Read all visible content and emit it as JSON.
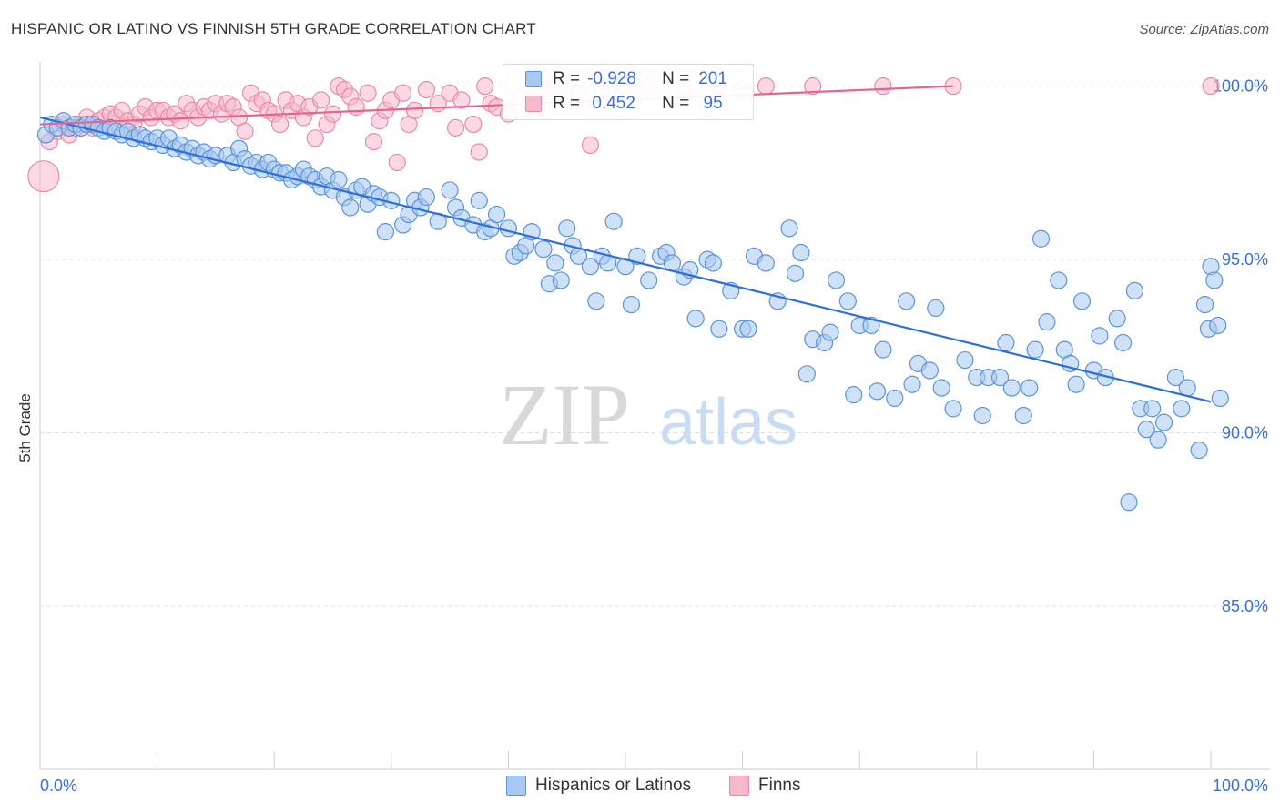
{
  "title": "HISPANIC OR LATINO VS FINNISH 5TH GRADE CORRELATION CHART",
  "source": "Source: ZipAtlas.com",
  "watermark": {
    "zip": "ZIP",
    "atlas": "atlas"
  },
  "legend_stats": [
    {
      "r_label": "R =",
      "r_value": "-0.928",
      "n_label": "N =",
      "n_value": "201"
    },
    {
      "r_label": "R =",
      "r_value": " 0.452",
      "n_label": "N =",
      "n_value": " 95"
    }
  ],
  "bottom_legend": [
    "Hispanics or Latinos",
    "Finns"
  ],
  "colors": {
    "blue_fill": "#a8c8f0",
    "blue_stroke": "#5b93dc",
    "blue_line": "#2f6fd6",
    "pink_fill": "#f7b8ca",
    "pink_stroke": "#e98aa8",
    "pink_line": "#e8638c",
    "tick_text": "#3a6fd8",
    "grid": "#dddddd"
  },
  "chart_data": {
    "type": "scatter",
    "title": "HISPANIC OR LATINO VS FINNISH 5TH GRADE CORRELATION CHART",
    "xlabel": "",
    "ylabel": "5th Grade",
    "xlim": [
      0,
      100
    ],
    "ylim": [
      80.3,
      100.7
    ],
    "x_tick_labels": [
      "0.0%",
      "100.0%"
    ],
    "y_ticks": [
      85,
      90,
      95,
      100
    ],
    "y_tick_labels": [
      "85.0%",
      "90.0%",
      "95.0%",
      "100.0%"
    ],
    "legend_placement": "top-center",
    "grid": true,
    "series": [
      {
        "name": "Hispanics or Latinos",
        "color": "#5b93dc",
        "trend": {
          "x0": 0,
          "y0": 99.1,
          "x1": 100,
          "y1": 90.9
        },
        "points": [
          [
            0.5,
            98.6
          ],
          [
            1,
            98.9
          ],
          [
            1.5,
            98.8
          ],
          [
            2,
            99.0
          ],
          [
            2.5,
            98.8
          ],
          [
            3,
            98.9
          ],
          [
            3.5,
            98.8
          ],
          [
            4,
            98.9
          ],
          [
            4.5,
            98.9
          ],
          [
            5,
            98.8
          ],
          [
            5.5,
            98.7
          ],
          [
            6,
            98.8
          ],
          [
            6.5,
            98.7
          ],
          [
            7,
            98.6
          ],
          [
            7.5,
            98.7
          ],
          [
            8,
            98.5
          ],
          [
            8.5,
            98.6
          ],
          [
            9,
            98.5
          ],
          [
            9.5,
            98.4
          ],
          [
            10,
            98.5
          ],
          [
            10.5,
            98.3
          ],
          [
            11,
            98.5
          ],
          [
            11.5,
            98.2
          ],
          [
            12,
            98.3
          ],
          [
            12.5,
            98.1
          ],
          [
            13,
            98.2
          ],
          [
            13.5,
            98.0
          ],
          [
            14,
            98.1
          ],
          [
            14.5,
            97.9
          ],
          [
            15,
            98.0
          ],
          [
            16,
            98.0
          ],
          [
            16.5,
            97.8
          ],
          [
            17,
            98.2
          ],
          [
            17.5,
            97.9
          ],
          [
            18,
            97.7
          ],
          [
            18.5,
            97.8
          ],
          [
            19,
            97.6
          ],
          [
            19.5,
            97.8
          ],
          [
            20,
            97.6
          ],
          [
            20.5,
            97.5
          ],
          [
            21,
            97.5
          ],
          [
            21.5,
            97.3
          ],
          [
            22,
            97.4
          ],
          [
            22.5,
            97.6
          ],
          [
            23,
            97.4
          ],
          [
            23.5,
            97.3
          ],
          [
            24,
            97.1
          ],
          [
            24.5,
            97.4
          ],
          [
            25,
            97.0
          ],
          [
            25.5,
            97.3
          ],
          [
            26,
            96.8
          ],
          [
            26.5,
            96.5
          ],
          [
            27,
            97.0
          ],
          [
            27.5,
            97.1
          ],
          [
            28,
            96.6
          ],
          [
            28.5,
            96.9
          ],
          [
            29,
            96.8
          ],
          [
            29.5,
            95.8
          ],
          [
            30,
            96.7
          ],
          [
            31,
            96.0
          ],
          [
            31.5,
            96.3
          ],
          [
            32,
            96.7
          ],
          [
            32.5,
            96.5
          ],
          [
            33,
            96.8
          ],
          [
            34,
            96.1
          ],
          [
            35,
            97.0
          ],
          [
            35.5,
            96.5
          ],
          [
            36,
            96.2
          ],
          [
            37,
            96.0
          ],
          [
            37.5,
            96.7
          ],
          [
            38,
            95.8
          ],
          [
            38.5,
            95.9
          ],
          [
            39,
            96.3
          ],
          [
            40,
            95.9
          ],
          [
            40.5,
            95.1
          ],
          [
            41,
            95.2
          ],
          [
            41.5,
            95.4
          ],
          [
            42,
            95.8
          ],
          [
            43,
            95.3
          ],
          [
            43.5,
            94.3
          ],
          [
            44,
            94.9
          ],
          [
            44.5,
            94.4
          ],
          [
            45,
            95.9
          ],
          [
            45.5,
            95.4
          ],
          [
            46,
            95.1
          ],
          [
            47,
            94.8
          ],
          [
            47.5,
            93.8
          ],
          [
            48,
            95.1
          ],
          [
            48.5,
            94.9
          ],
          [
            49,
            96.1
          ],
          [
            50,
            94.8
          ],
          [
            50.5,
            93.7
          ],
          [
            51,
            95.1
          ],
          [
            52,
            94.4
          ],
          [
            53,
            95.1
          ],
          [
            53.5,
            95.2
          ],
          [
            54,
            94.9
          ],
          [
            55,
            94.5
          ],
          [
            55.5,
            94.7
          ],
          [
            56,
            93.3
          ],
          [
            57,
            95.0
          ],
          [
            57.5,
            94.9
          ],
          [
            58,
            93.0
          ],
          [
            59,
            94.1
          ],
          [
            60,
            93.0
          ],
          [
            60.5,
            93.0
          ],
          [
            61,
            95.1
          ],
          [
            62,
            94.9
          ],
          [
            63,
            93.8
          ],
          [
            64,
            95.9
          ],
          [
            64.5,
            94.6
          ],
          [
            65,
            95.2
          ],
          [
            65.5,
            91.7
          ],
          [
            66,
            92.7
          ],
          [
            67,
            92.6
          ],
          [
            67.5,
            92.9
          ],
          [
            68,
            94.4
          ],
          [
            69,
            93.8
          ],
          [
            69.5,
            91.1
          ],
          [
            70,
            93.1
          ],
          [
            71,
            93.1
          ],
          [
            71.5,
            91.2
          ],
          [
            72,
            92.4
          ],
          [
            73,
            91.0
          ],
          [
            74,
            93.8
          ],
          [
            74.5,
            91.4
          ],
          [
            75,
            92.0
          ],
          [
            76,
            91.8
          ],
          [
            76.5,
            93.6
          ],
          [
            77,
            91.3
          ],
          [
            78,
            90.7
          ],
          [
            79,
            92.1
          ],
          [
            80,
            91.6
          ],
          [
            80.5,
            90.5
          ],
          [
            81,
            91.6
          ],
          [
            82,
            91.6
          ],
          [
            82.5,
            92.6
          ],
          [
            83,
            91.3
          ],
          [
            84,
            90.5
          ],
          [
            84.5,
            91.3
          ],
          [
            85,
            92.4
          ],
          [
            85.5,
            95.6
          ],
          [
            86,
            93.2
          ],
          [
            87,
            94.4
          ],
          [
            87.5,
            92.4
          ],
          [
            88,
            92.0
          ],
          [
            88.5,
            91.4
          ],
          [
            89,
            93.8
          ],
          [
            90,
            91.8
          ],
          [
            90.5,
            92.8
          ],
          [
            91,
            91.6
          ],
          [
            92,
            93.3
          ],
          [
            92.5,
            92.6
          ],
          [
            93,
            88.0
          ],
          [
            93.5,
            94.1
          ],
          [
            94,
            90.7
          ],
          [
            94.5,
            90.1
          ],
          [
            95,
            90.7
          ],
          [
            95.5,
            89.8
          ],
          [
            96,
            90.3
          ],
          [
            97,
            91.6
          ],
          [
            97.5,
            90.7
          ],
          [
            98,
            91.3
          ],
          [
            99,
            89.5
          ],
          [
            99.5,
            93.7
          ],
          [
            99.8,
            93.0
          ],
          [
            100,
            94.8
          ],
          [
            100.3,
            94.4
          ],
          [
            100.6,
            93.1
          ],
          [
            100.8,
            91.0
          ]
        ]
      },
      {
        "name": "Finns",
        "color": "#e98aa8",
        "trend": {
          "x0": 0,
          "y0": 98.9,
          "x1": 78,
          "y1": 100.0
        },
        "points": [
          [
            0.3,
            97.4
          ],
          [
            0.8,
            98.4
          ],
          [
            1.5,
            98.7
          ],
          [
            2,
            98.9
          ],
          [
            2.5,
            98.6
          ],
          [
            3,
            98.8
          ],
          [
            3.5,
            98.9
          ],
          [
            4,
            99.1
          ],
          [
            4.5,
            98.8
          ],
          [
            5,
            99.0
          ],
          [
            5.5,
            99.1
          ],
          [
            6,
            99.2
          ],
          [
            6.5,
            99.1
          ],
          [
            7,
            99.3
          ],
          [
            7.5,
            99.0
          ],
          [
            8,
            98.9
          ],
          [
            8.5,
            99.2
          ],
          [
            9,
            99.4
          ],
          [
            9.5,
            99.1
          ],
          [
            10,
            99.3
          ],
          [
            10.5,
            99.3
          ],
          [
            11,
            99.1
          ],
          [
            11.5,
            99.2
          ],
          [
            12,
            99.0
          ],
          [
            12.5,
            99.5
          ],
          [
            13,
            99.3
          ],
          [
            13.5,
            99.1
          ],
          [
            14,
            99.4
          ],
          [
            14.5,
            99.3
          ],
          [
            15,
            99.5
          ],
          [
            15.5,
            99.2
          ],
          [
            16,
            99.5
          ],
          [
            16.5,
            99.4
          ],
          [
            17,
            99.1
          ],
          [
            17.5,
            98.7
          ],
          [
            18,
            99.8
          ],
          [
            18.5,
            99.5
          ],
          [
            19,
            99.6
          ],
          [
            19.5,
            99.3
          ],
          [
            20,
            99.2
          ],
          [
            20.5,
            98.9
          ],
          [
            21,
            99.6
          ],
          [
            21.5,
            99.3
          ],
          [
            22,
            99.5
          ],
          [
            22.5,
            99.1
          ],
          [
            23,
            99.4
          ],
          [
            23.5,
            98.5
          ],
          [
            24,
            99.6
          ],
          [
            24.5,
            98.9
          ],
          [
            25,
            99.2
          ],
          [
            25.5,
            100.0
          ],
          [
            26,
            99.9
          ],
          [
            26.5,
            99.7
          ],
          [
            27,
            99.4
          ],
          [
            28,
            99.8
          ],
          [
            28.5,
            98.4
          ],
          [
            29,
            99.0
          ],
          [
            29.5,
            99.3
          ],
          [
            30,
            99.6
          ],
          [
            30.5,
            97.8
          ],
          [
            31,
            99.8
          ],
          [
            31.5,
            98.9
          ],
          [
            32,
            99.3
          ],
          [
            33,
            99.9
          ],
          [
            34,
            99.5
          ],
          [
            35,
            99.8
          ],
          [
            35.5,
            98.8
          ],
          [
            36,
            99.6
          ],
          [
            37,
            98.9
          ],
          [
            37.5,
            98.1
          ],
          [
            38,
            100.0
          ],
          [
            38.5,
            99.5
          ],
          [
            39,
            99.4
          ],
          [
            40,
            99.2
          ],
          [
            41,
            99.7
          ],
          [
            42,
            100.0
          ],
          [
            43,
            99.9
          ],
          [
            44,
            100.0
          ],
          [
            45,
            99.7
          ],
          [
            46,
            99.8
          ],
          [
            47,
            98.3
          ],
          [
            48,
            99.9
          ],
          [
            50,
            100.0
          ],
          [
            52,
            100.0
          ],
          [
            55,
            100.0
          ],
          [
            58,
            100.0
          ],
          [
            60,
            99.9
          ],
          [
            62,
            100.0
          ],
          [
            66,
            100.0
          ],
          [
            72,
            100.0
          ],
          [
            78,
            100.0
          ],
          [
            100,
            100.0
          ]
        ]
      }
    ]
  }
}
